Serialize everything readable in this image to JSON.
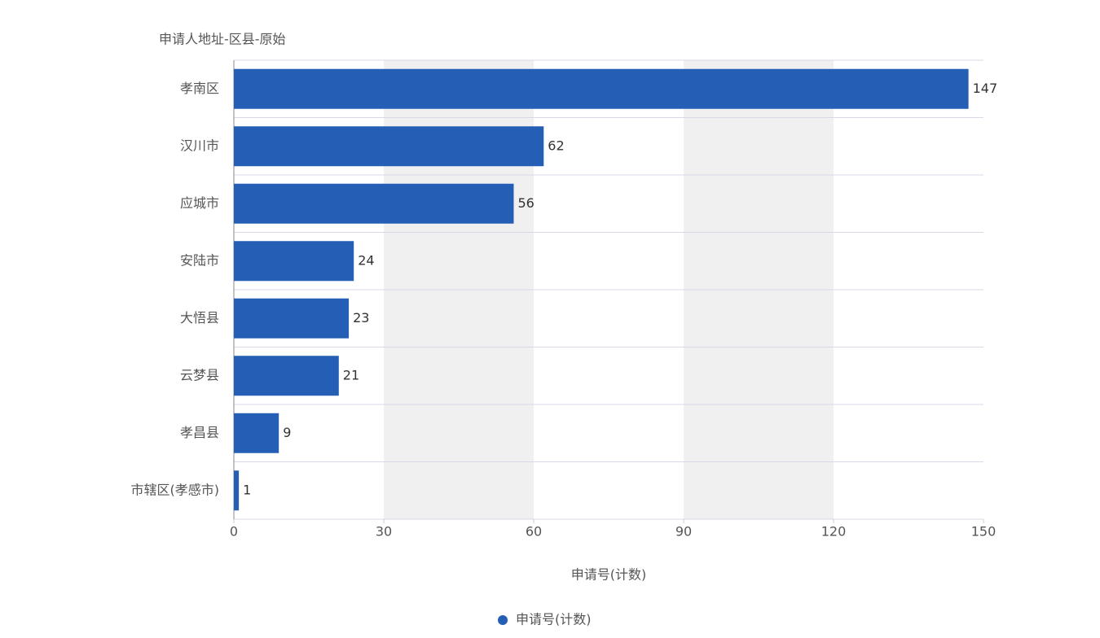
{
  "chart_data": {
    "type": "hbar",
    "ylabel": "申请人地址-区县-原始",
    "xlabel": "申请号(计数)",
    "categories": [
      "孝南区",
      "汉川市",
      "应城市",
      "安陆市",
      "大悟县",
      "云梦县",
      "孝昌县",
      "市辖区(孝感市)"
    ],
    "series": [
      {
        "name": "申请号(计数)",
        "color": "#245fb5",
        "values": [
          147,
          62,
          56,
          24,
          23,
          21,
          9,
          1
        ]
      }
    ],
    "xlim": [
      0,
      150
    ],
    "xticks": [
      0,
      30,
      60,
      90,
      120,
      150
    ],
    "x_bands": true,
    "legend": "bottom"
  }
}
